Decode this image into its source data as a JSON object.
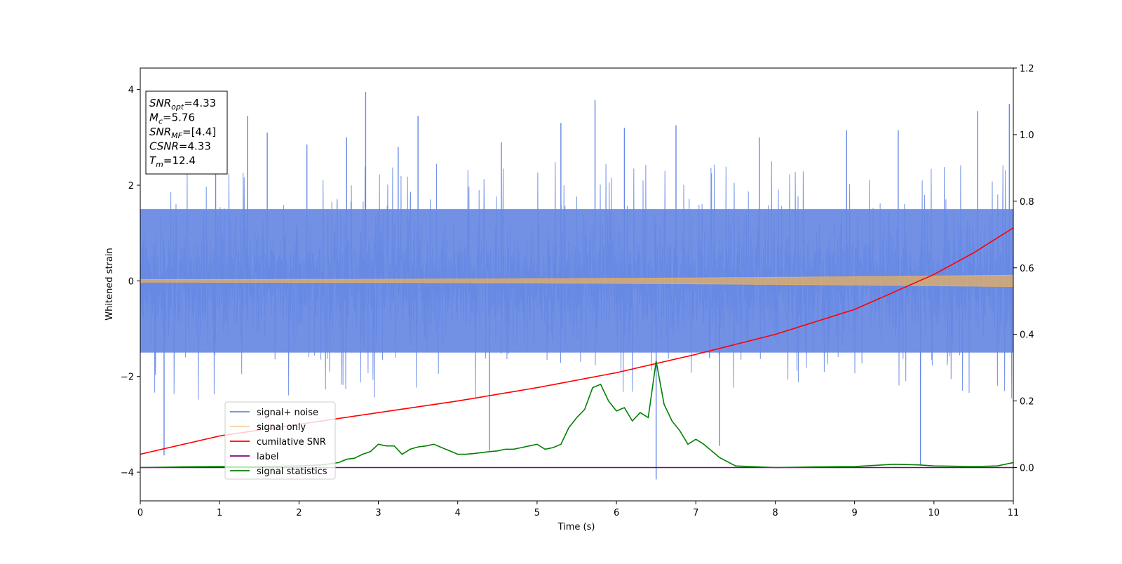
{
  "chart_data": {
    "type": "line",
    "title": "",
    "xlabel": "Time (s)",
    "ylabel": "Whitened strain",
    "y2label": "",
    "xlim": [
      0,
      11
    ],
    "ylim": [
      -4.6,
      4.45
    ],
    "y2lim": [
      -0.1,
      1.2
    ],
    "xticks": [
      0,
      1,
      2,
      3,
      4,
      5,
      6,
      7,
      8,
      9,
      10,
      11
    ],
    "yticks": [
      -4,
      -2,
      0,
      2,
      4
    ],
    "y2ticks": [
      0.0,
      0.2,
      0.4,
      0.6,
      0.8,
      1.0,
      1.2
    ],
    "y2tick_labels": [
      "0.0",
      "0.2",
      "0.4",
      "0.6",
      "0.8",
      "1.0",
      "1.2"
    ],
    "grid": false,
    "legend_position": "lower-left",
    "series": [
      {
        "name": "signal+ noise",
        "axis": "left",
        "color": "#6688e3",
        "style": "noise",
        "core_amplitude": 1.5,
        "spikes": [
          {
            "x": 0.3,
            "y": -3.65
          },
          {
            "x": 0.95,
            "y": 2.7
          },
          {
            "x": 1.35,
            "y": 3.45
          },
          {
            "x": 1.6,
            "y": 3.1
          },
          {
            "x": 2.1,
            "y": 2.85
          },
          {
            "x": 2.6,
            "y": 3.0
          },
          {
            "x": 2.84,
            "y": 3.95
          },
          {
            "x": 3.25,
            "y": 2.8
          },
          {
            "x": 3.5,
            "y": 3.45
          },
          {
            "x": 4.4,
            "y": -3.55
          },
          {
            "x": 4.55,
            "y": 2.9
          },
          {
            "x": 5.3,
            "y": 3.3
          },
          {
            "x": 5.73,
            "y": 3.78
          },
          {
            "x": 6.1,
            "y": 3.2
          },
          {
            "x": 6.5,
            "y": -4.15
          },
          {
            "x": 6.75,
            "y": 3.25
          },
          {
            "x": 7.3,
            "y": -3.45
          },
          {
            "x": 7.8,
            "y": 3.0
          },
          {
            "x": 8.9,
            "y": 3.15
          },
          {
            "x": 9.55,
            "y": 3.15
          },
          {
            "x": 9.83,
            "y": -3.85
          },
          {
            "x": 10.55,
            "y": 3.55
          },
          {
            "x": 10.95,
            "y": 3.7
          }
        ]
      },
      {
        "name": "signal only",
        "axis": "left",
        "color": "#e8b060",
        "style": "chirp",
        "amplitude_start": 0.03,
        "amplitude_end": 0.12
      },
      {
        "name": "cumilative SNR",
        "axis": "right",
        "color": "#ff0000",
        "x": [
          0,
          1,
          2,
          3,
          4,
          5,
          6,
          7,
          8,
          9,
          10,
          10.5,
          11
        ],
        "values": [
          0.04,
          0.095,
          0.13,
          0.165,
          0.2,
          0.24,
          0.285,
          0.34,
          0.4,
          0.475,
          0.58,
          0.645,
          0.72
        ]
      },
      {
        "name": "label",
        "axis": "right",
        "color": "#800080",
        "x": [
          0,
          11
        ],
        "values": [
          0.0,
          0.0
        ]
      },
      {
        "name": "signal statistics",
        "axis": "right",
        "color": "#008000",
        "x": [
          0,
          0.5,
          1,
          1.5,
          2,
          2.3,
          2.5,
          2.6,
          2.7,
          2.8,
          2.9,
          3.0,
          3.1,
          3.2,
          3.3,
          3.4,
          3.5,
          3.6,
          3.7,
          3.8,
          3.9,
          4.0,
          4.1,
          4.2,
          4.3,
          4.4,
          4.5,
          4.6,
          4.7,
          4.8,
          4.9,
          5.0,
          5.1,
          5.2,
          5.3,
          5.4,
          5.5,
          5.6,
          5.7,
          5.8,
          5.9,
          6.0,
          6.1,
          6.2,
          6.3,
          6.4,
          6.5,
          6.6,
          6.7,
          6.8,
          6.9,
          7.0,
          7.1,
          7.2,
          7.3,
          7.5,
          8.0,
          8.5,
          9.0,
          9.5,
          9.8,
          10.0,
          10.5,
          10.8,
          11.0
        ],
        "values": [
          0.0,
          0.002,
          0.003,
          0.003,
          0.005,
          0.008,
          0.015,
          0.025,
          0.028,
          0.04,
          0.048,
          0.07,
          0.065,
          0.065,
          0.04,
          0.055,
          0.062,
          0.065,
          0.07,
          0.06,
          0.05,
          0.04,
          0.04,
          0.042,
          0.045,
          0.048,
          0.05,
          0.055,
          0.055,
          0.06,
          0.065,
          0.07,
          0.055,
          0.06,
          0.07,
          0.12,
          0.15,
          0.175,
          0.24,
          0.25,
          0.2,
          0.17,
          0.18,
          0.14,
          0.165,
          0.15,
          0.32,
          0.19,
          0.14,
          0.11,
          0.07,
          0.085,
          0.07,
          0.05,
          0.03,
          0.005,
          0.0,
          0.002,
          0.003,
          0.01,
          0.008,
          0.005,
          0.003,
          0.005,
          0.015
        ]
      }
    ],
    "annotation": [
      {
        "main": "SNR",
        "sub": "opt",
        "rest": "=4.33"
      },
      {
        "main": "M",
        "sub": "c",
        "rest": "=5.76"
      },
      {
        "main": "SNR",
        "sub": "MF",
        "rest": "=[4.4]"
      },
      {
        "main": "CSNR",
        "sub": "",
        "rest": "=4.33"
      },
      {
        "main": "T",
        "sub": "m",
        "rest": "=12.4"
      }
    ]
  }
}
